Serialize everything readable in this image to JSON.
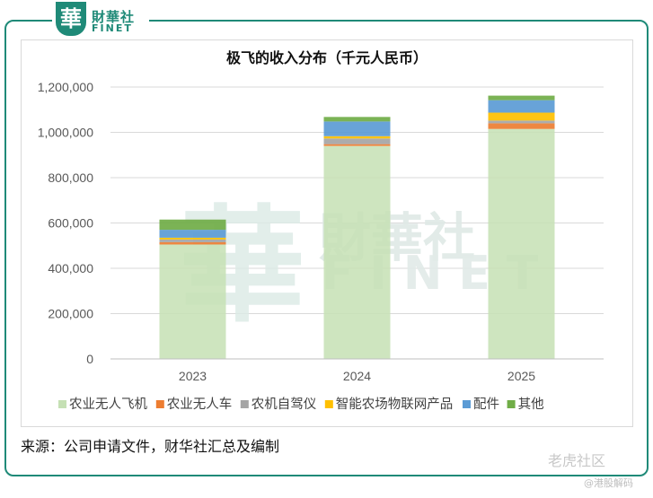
{
  "header": {
    "logo_glyph": "華",
    "logo_cn": "財華社",
    "logo_en": "FINET"
  },
  "footer": {
    "source": "来源：公司申请文件，财华社汇总及编制",
    "watermark_site": "老虎社区",
    "watermark_user": "@港股解码"
  },
  "colors": {
    "frame": "#1f8a78",
    "series": [
      "#c5e0b4",
      "#ed7d31",
      "#a5a5a5",
      "#ffc000",
      "#5b9bd5",
      "#70ad47"
    ]
  },
  "chart_data": {
    "type": "bar",
    "stacked": true,
    "title": "极飞的收入分布（千元人民币）",
    "categories": [
      "2023",
      "2024",
      "2025"
    ],
    "ylim": [
      0,
      1200000
    ],
    "yticks": [
      0,
      200000,
      400000,
      600000,
      800000,
      1000000,
      1200000
    ],
    "ytick_labels": [
      "0",
      "200,000",
      "400,000",
      "600,000",
      "800,000",
      "1,000,000",
      "1,200,000"
    ],
    "grid": true,
    "legend_position": "bottom",
    "watermark": {
      "cn": "財華社",
      "en": "FINET",
      "glyph": "華"
    },
    "series": [
      {
        "name": "农业无人飞机",
        "values": [
          505000,
          940000,
          1015000
        ]
      },
      {
        "name": "农业无人车",
        "values": [
          10000,
          8000,
          25000
        ]
      },
      {
        "name": "农机自驾仪",
        "values": [
          12000,
          25000,
          12000
        ]
      },
      {
        "name": "智能农场物联网产品",
        "values": [
          8000,
          10000,
          35000
        ]
      },
      {
        "name": "配件",
        "values": [
          35000,
          65000,
          55000
        ]
      },
      {
        "name": "其他",
        "values": [
          45000,
          20000,
          20000
        ]
      }
    ]
  }
}
